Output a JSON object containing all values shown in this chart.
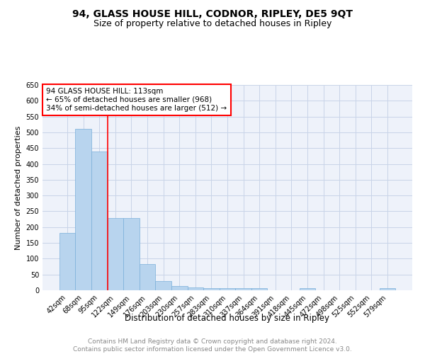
{
  "title": "94, GLASS HOUSE HILL, CODNOR, RIPLEY, DE5 9QT",
  "subtitle": "Size of property relative to detached houses in Ripley",
  "xlabel": "Distribution of detached houses by size in Ripley",
  "ylabel": "Number of detached properties",
  "bar_labels": [
    "42sqm",
    "68sqm",
    "95sqm",
    "122sqm",
    "149sqm",
    "176sqm",
    "203sqm",
    "230sqm",
    "257sqm",
    "283sqm",
    "310sqm",
    "337sqm",
    "364sqm",
    "391sqm",
    "418sqm",
    "445sqm",
    "472sqm",
    "498sqm",
    "525sqm",
    "552sqm",
    "579sqm"
  ],
  "bar_values": [
    182,
    510,
    440,
    228,
    228,
    84,
    29,
    14,
    8,
    7,
    7,
    7,
    7,
    0,
    0,
    7,
    0,
    0,
    0,
    0,
    7
  ],
  "bar_color": "#b8d4ee",
  "bar_edge_color": "#7aafda",
  "grid_color": "#c8d4e8",
  "background_color": "#eef2fa",
  "annotation_text": "94 GLASS HOUSE HILL: 113sqm\n← 65% of detached houses are smaller (968)\n34% of semi-detached houses are larger (512) →",
  "annotation_box_color": "white",
  "annotation_box_edge_color": "red",
  "vline_x_index": 2.5,
  "vline_color": "red",
  "ylim": [
    0,
    650
  ],
  "yticks": [
    0,
    50,
    100,
    150,
    200,
    250,
    300,
    350,
    400,
    450,
    500,
    550,
    600,
    650
  ],
  "footer_text": "Contains HM Land Registry data © Crown copyright and database right 2024.\nContains public sector information licensed under the Open Government Licence v3.0.",
  "title_fontsize": 10,
  "subtitle_fontsize": 9,
  "xlabel_fontsize": 8.5,
  "ylabel_fontsize": 8,
  "tick_fontsize": 7,
  "annotation_fontsize": 7.5,
  "footer_fontsize": 6.5
}
